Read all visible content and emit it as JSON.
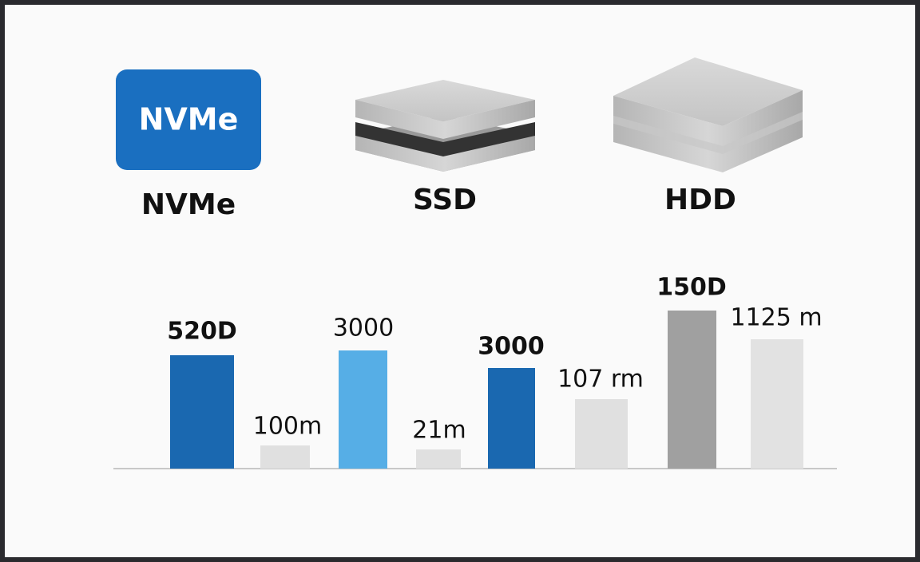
{
  "devices": [
    {
      "icon_text": "NVMe",
      "label": "NVMe"
    },
    {
      "label": "SSD"
    },
    {
      "label": "HDD"
    }
  ],
  "bars": [
    {
      "label": "520D"
    },
    {
      "label": "100m"
    },
    {
      "label": "3000"
    },
    {
      "label": "21m"
    },
    {
      "label": "3000"
    },
    {
      "label": "107 rm"
    },
    {
      "label": "150D"
    },
    {
      "label": "1125 m"
    }
  ]
}
